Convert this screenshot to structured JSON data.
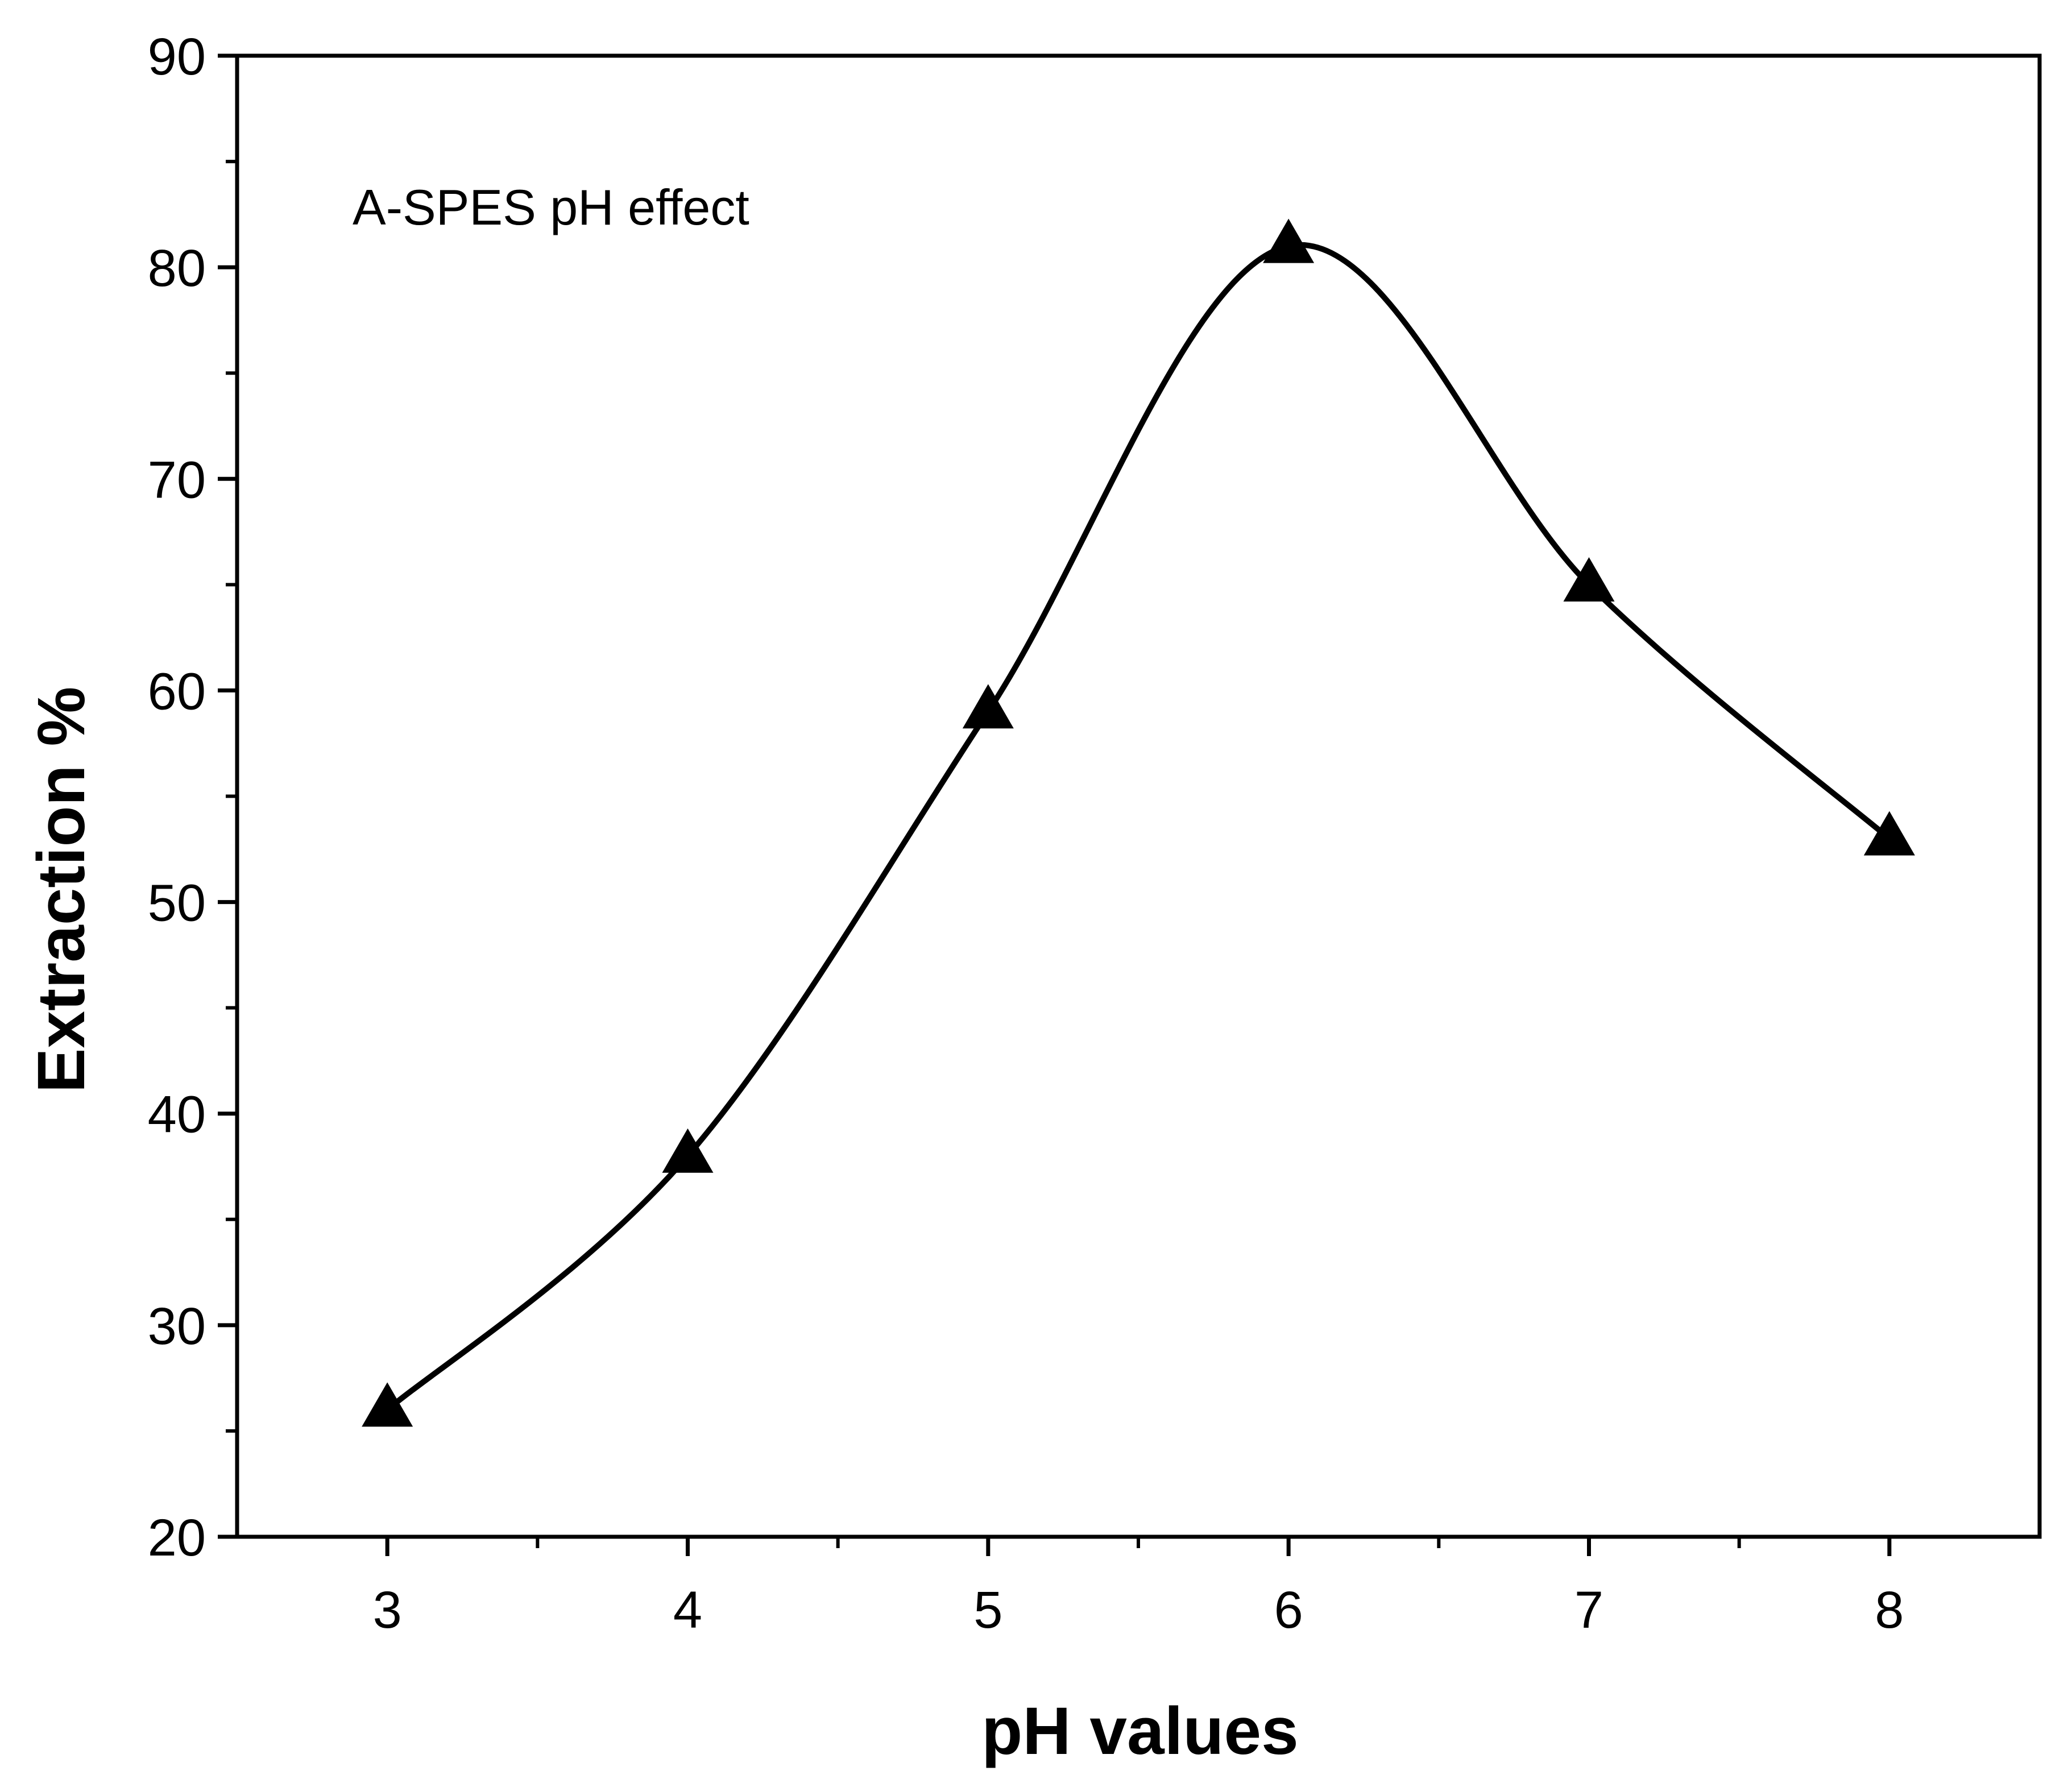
{
  "chart_data": {
    "type": "line",
    "title": "",
    "annotation": "A-SPES pH effect",
    "xlabel": "pH values",
    "ylabel": "Extraction %",
    "xlim": [
      2.5,
      8.5
    ],
    "ylim": [
      20,
      90
    ],
    "xticks": [
      3,
      4,
      5,
      6,
      7,
      8
    ],
    "yticks": [
      20,
      30,
      40,
      50,
      60,
      70,
      80,
      90
    ],
    "grid": false,
    "marker": "triangle",
    "colors": {
      "line": "#000000",
      "marker": "#000000",
      "axis": "#000000"
    },
    "series": [
      {
        "name": "A-SPES pH effect",
        "x": [
          3,
          4,
          5,
          6,
          7,
          8
        ],
        "values": [
          26,
          38,
          59,
          81,
          65,
          53
        ]
      }
    ]
  }
}
